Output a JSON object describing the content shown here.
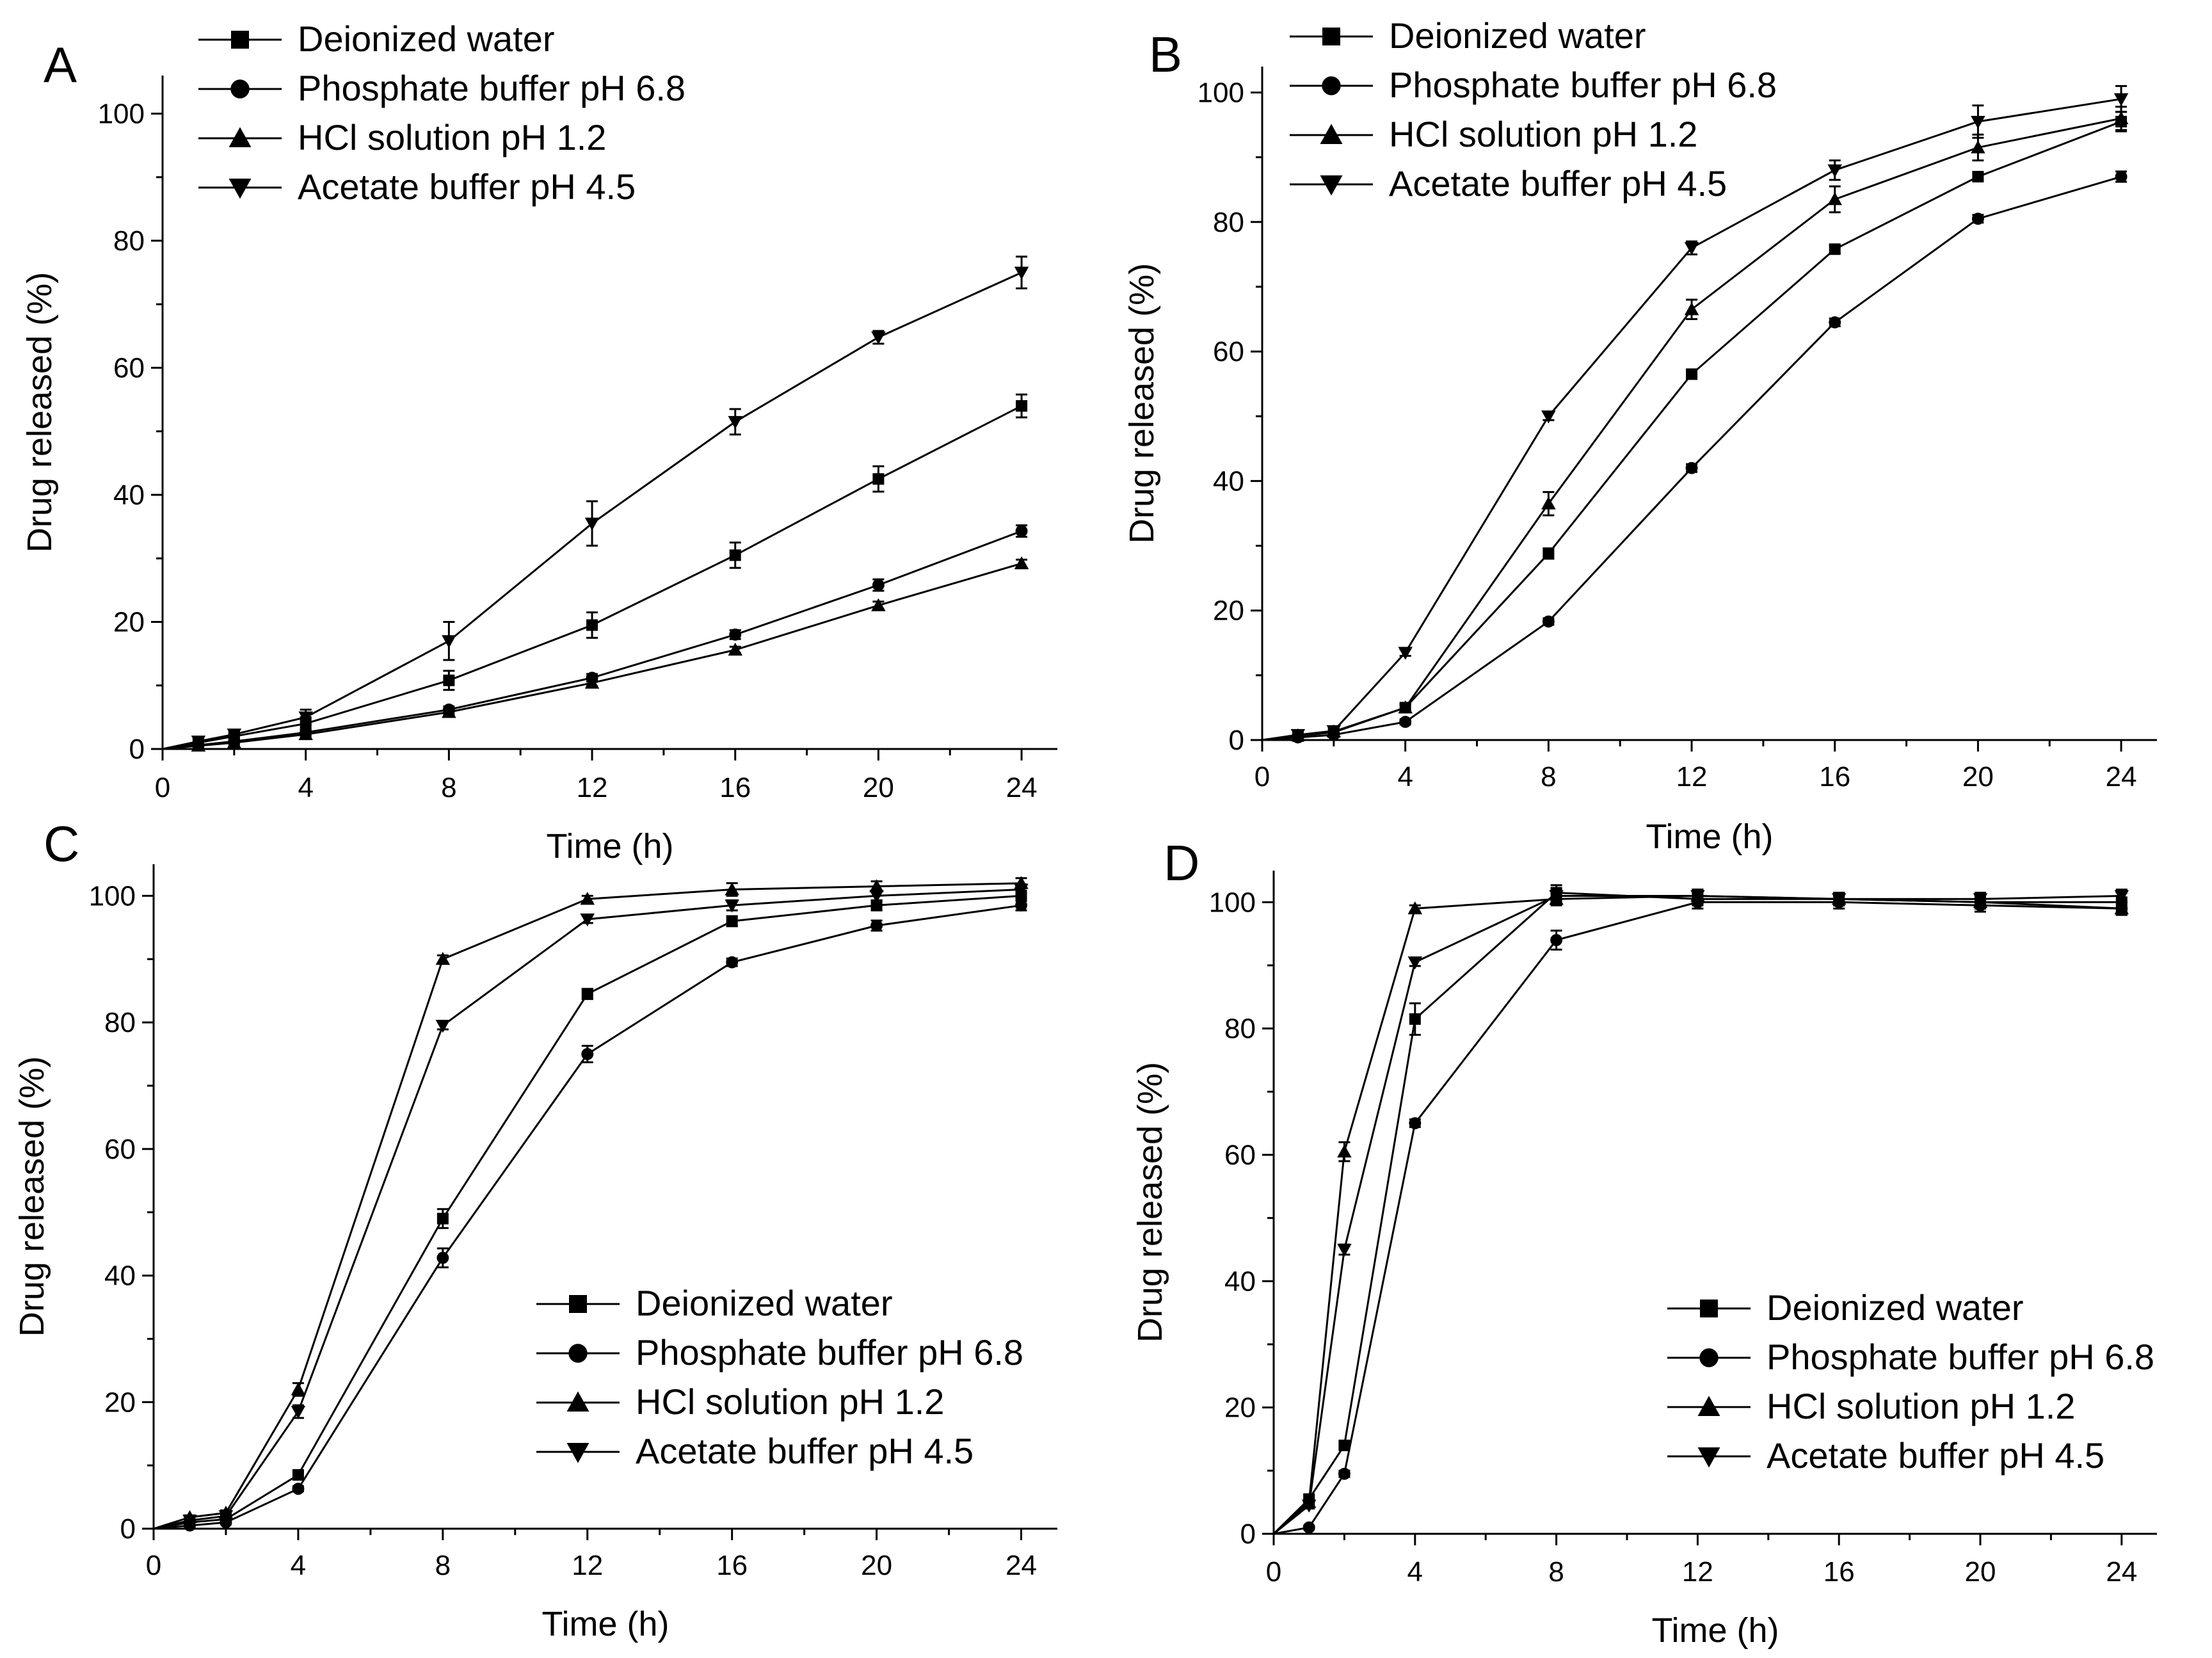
{
  "chart_data": [
    {
      "type": "line",
      "panel_label": "A",
      "xlabel": "Time (h)",
      "ylabel": "Drug released (%)",
      "xlim": [
        0,
        25
      ],
      "ylim": [
        0,
        106
      ],
      "xticks": [
        0,
        4,
        8,
        12,
        16,
        20,
        24
      ],
      "yticks": [
        0,
        20,
        40,
        60,
        80,
        100
      ],
      "legend_position": "top-left",
      "x": [
        0,
        1,
        2,
        4,
        8,
        12,
        16,
        20,
        24
      ],
      "series": [
        {
          "name": "Deionized water",
          "marker": "square",
          "values": [
            0,
            1.0,
            2.0,
            4.0,
            10.8,
            19.5,
            30.5,
            42.5,
            54.0
          ],
          "errors": [
            0,
            0.3,
            0.4,
            1.0,
            1.5,
            2.0,
            2.0,
            2.0,
            1.8
          ]
        },
        {
          "name": "Phosphate buffer pH 6.8",
          "marker": "circle",
          "values": [
            0,
            0.6,
            1.2,
            2.6,
            6.2,
            11.2,
            18.0,
            25.8,
            34.3
          ],
          "errors": [
            0,
            0.2,
            0.3,
            0.4,
            0.5,
            0.6,
            0.7,
            0.9,
            0.9
          ]
        },
        {
          "name": "HCl solution pH 1.2",
          "marker": "triangle-up",
          "values": [
            0,
            0.5,
            1.0,
            2.3,
            5.8,
            10.4,
            15.6,
            22.6,
            29.2
          ],
          "errors": [
            0,
            0.2,
            0.3,
            0.3,
            0.4,
            0.5,
            0.5,
            0.6,
            0.6
          ]
        },
        {
          "name": "Acetate buffer pH 4.5",
          "marker": "triangle-down",
          "values": [
            0,
            1.2,
            2.3,
            5.0,
            17.0,
            35.5,
            51.5,
            64.8,
            75.0
          ],
          "errors": [
            0,
            0.3,
            0.5,
            1.2,
            3.0,
            3.5,
            2.0,
            1.0,
            2.5
          ]
        }
      ]
    },
    {
      "type": "line",
      "panel_label": "B",
      "xlabel": "Time (h)",
      "ylabel": "Drug released (%)",
      "xlim": [
        0,
        25
      ],
      "ylim": [
        0,
        104
      ],
      "xticks": [
        0,
        4,
        8,
        12,
        16,
        20,
        24
      ],
      "yticks": [
        0,
        20,
        40,
        60,
        80,
        100
      ],
      "legend_position": "top-left",
      "x": [
        0,
        1,
        2,
        4,
        8,
        12,
        16,
        20,
        24
      ],
      "series": [
        {
          "name": "Deionized water",
          "marker": "square",
          "values": [
            0,
            0.6,
            1.2,
            5.0,
            28.8,
            56.5,
            75.8,
            87.0,
            95.5
          ],
          "errors": [
            0,
            0.2,
            0.3,
            0.5,
            0.8,
            0.6,
            0.6,
            0.6,
            1.5
          ]
        },
        {
          "name": "Phosphate buffer pH 6.8",
          "marker": "circle",
          "values": [
            0,
            0.4,
            0.8,
            2.8,
            18.3,
            42.0,
            64.5,
            80.5,
            87.0
          ],
          "errors": [
            0,
            0.2,
            0.2,
            0.4,
            0.5,
            0.6,
            0.6,
            0.6,
            0.8
          ]
        },
        {
          "name": "HCl solution pH 1.2",
          "marker": "triangle-up",
          "values": [
            0,
            0.7,
            1.3,
            5.0,
            36.5,
            66.5,
            83.5,
            91.5,
            96.0
          ],
          "errors": [
            0,
            0.2,
            0.3,
            0.6,
            1.8,
            1.5,
            2.0,
            2.0,
            1.8
          ]
        },
        {
          "name": "Acetate buffer pH 4.5",
          "marker": "triangle-down",
          "values": [
            0,
            0.8,
            1.4,
            13.5,
            50.0,
            76.0,
            88.0,
            95.5,
            99.0
          ],
          "errors": [
            0,
            0.2,
            0.3,
            0.5,
            0.6,
            1.0,
            1.5,
            2.5,
            2.0
          ]
        }
      ]
    },
    {
      "type": "line",
      "panel_label": "C",
      "xlabel": "Time (h)",
      "ylabel": "Drug released (%)",
      "xlim": [
        0,
        25
      ],
      "ylim": [
        0,
        105
      ],
      "xticks": [
        0,
        4,
        8,
        12,
        16,
        20,
        24
      ],
      "yticks": [
        0,
        20,
        40,
        60,
        80,
        100
      ],
      "legend_position": "bottom-right",
      "x": [
        0,
        1,
        2,
        4,
        8,
        12,
        16,
        20,
        24
      ],
      "series": [
        {
          "name": "Deionized water",
          "marker": "square",
          "values": [
            0,
            1.0,
            1.5,
            8.5,
            49.0,
            84.5,
            96.0,
            98.5,
            100.0
          ],
          "errors": [
            0,
            0.3,
            0.4,
            0.6,
            1.5,
            0.8,
            0.8,
            0.8,
            0.8
          ]
        },
        {
          "name": "Phosphate buffer pH 6.8",
          "marker": "circle",
          "values": [
            0,
            0.5,
            1.0,
            6.3,
            42.8,
            75.0,
            89.5,
            95.3,
            98.5
          ],
          "errors": [
            0,
            0.2,
            0.3,
            0.4,
            1.5,
            1.3,
            0.6,
            0.8,
            0.8
          ]
        },
        {
          "name": "HCl solution pH 1.2",
          "marker": "triangle-up",
          "values": [
            0,
            1.8,
            2.5,
            22.0,
            90.0,
            99.5,
            101.0,
            101.5,
            102.0
          ],
          "errors": [
            0,
            0.3,
            0.4,
            1.0,
            0.6,
            0.5,
            1.0,
            0.8,
            0.8
          ]
        },
        {
          "name": "Acetate buffer pH 4.5",
          "marker": "triangle-down",
          "values": [
            0,
            1.3,
            2.0,
            18.5,
            79.5,
            96.3,
            98.5,
            100.0,
            101.0
          ],
          "errors": [
            0,
            0.3,
            0.4,
            1.0,
            0.6,
            0.6,
            0.8,
            0.8,
            0.8
          ]
        }
      ]
    },
    {
      "type": "line",
      "panel_label": "D",
      "xlabel": "Time (h)",
      "ylabel": "Drug released (%)",
      "xlim": [
        0,
        25
      ],
      "ylim": [
        0,
        105
      ],
      "xticks": [
        0,
        4,
        8,
        12,
        16,
        20,
        24
      ],
      "yticks": [
        0,
        20,
        40,
        60,
        80,
        100
      ],
      "legend_position": "bottom-right",
      "x": [
        0,
        1,
        2,
        4,
        8,
        12,
        16,
        20,
        24
      ],
      "series": [
        {
          "name": "Deionized water",
          "marker": "square",
          "values": [
            0,
            5.5,
            14.0,
            81.5,
            101.5,
            100.5,
            100.5,
            100.0,
            100.0
          ],
          "errors": [
            0,
            0.5,
            0.6,
            2.5,
            1.2,
            1.0,
            1.0,
            1.0,
            1.5
          ]
        },
        {
          "name": "Phosphate buffer pH 6.8",
          "marker": "circle",
          "values": [
            0,
            1.0,
            9.5,
            65.0,
            94.0,
            100.0,
            100.0,
            99.5,
            99.0
          ],
          "errors": [
            0,
            0.3,
            0.5,
            0.6,
            1.5,
            1.0,
            1.0,
            1.0,
            1.0
          ]
        },
        {
          "name": "HCl solution pH 1.2",
          "marker": "triangle-up",
          "values": [
            0,
            5.0,
            60.5,
            99.0,
            100.5,
            101.0,
            100.5,
            100.0,
            99.0
          ],
          "errors": [
            0,
            0.5,
            1.5,
            0.5,
            1.0,
            1.0,
            1.0,
            1.0,
            1.0
          ]
        },
        {
          "name": "Acetate buffer pH 4.5",
          "marker": "triangle-down",
          "values": [
            0,
            4.5,
            45.0,
            90.5,
            101.0,
            101.0,
            100.5,
            100.5,
            101.0
          ],
          "errors": [
            0,
            0.5,
            0.8,
            0.6,
            1.0,
            1.0,
            1.0,
            1.0,
            1.0
          ]
        }
      ]
    }
  ]
}
